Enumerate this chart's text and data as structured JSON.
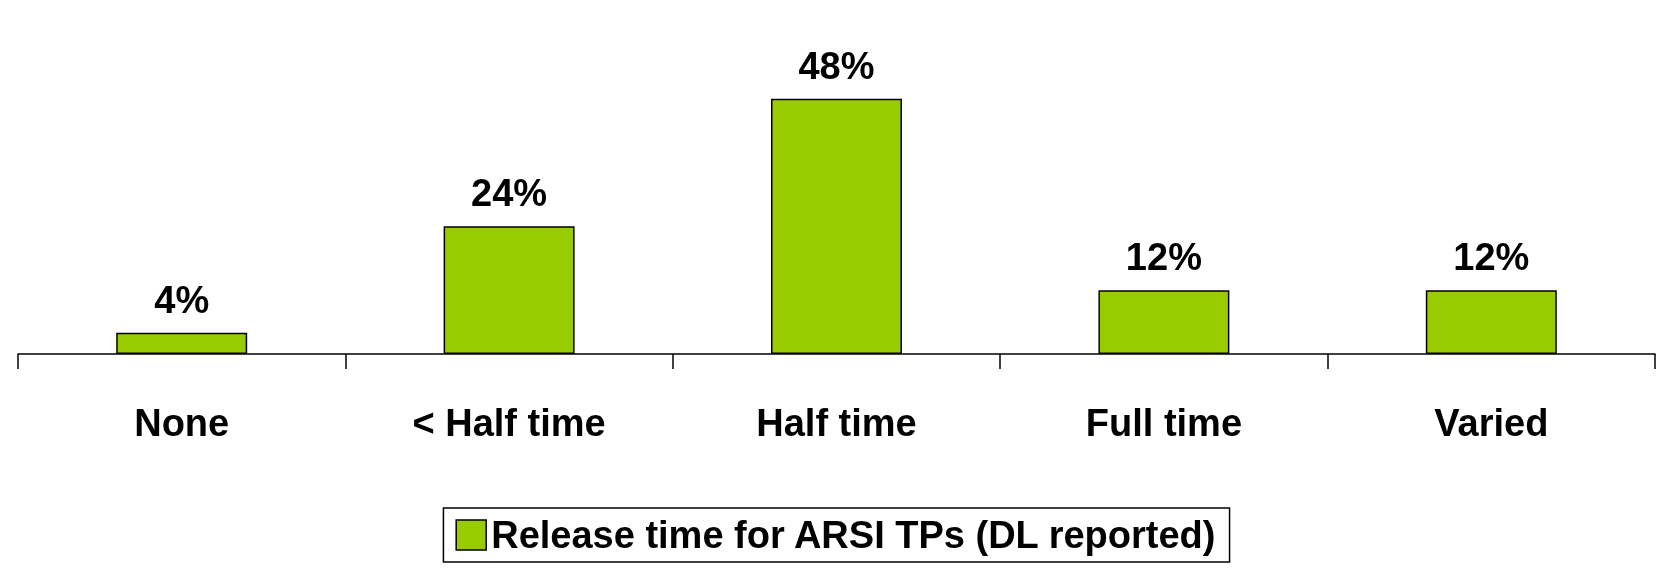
{
  "chart_data": {
    "type": "bar",
    "categories": [
      "None",
      "< Half time",
      "Half time",
      "Full time",
      "Varied"
    ],
    "series": [
      {
        "name": "Release time for ARSI TPs (DL reported)",
        "color": "#99cc00",
        "values": [
          4,
          24,
          48,
          12,
          12
        ],
        "value_labels": [
          "4%",
          "24%",
          "48%",
          "12%",
          "12%"
        ]
      }
    ],
    "legend": "bottom",
    "grid": false
  }
}
